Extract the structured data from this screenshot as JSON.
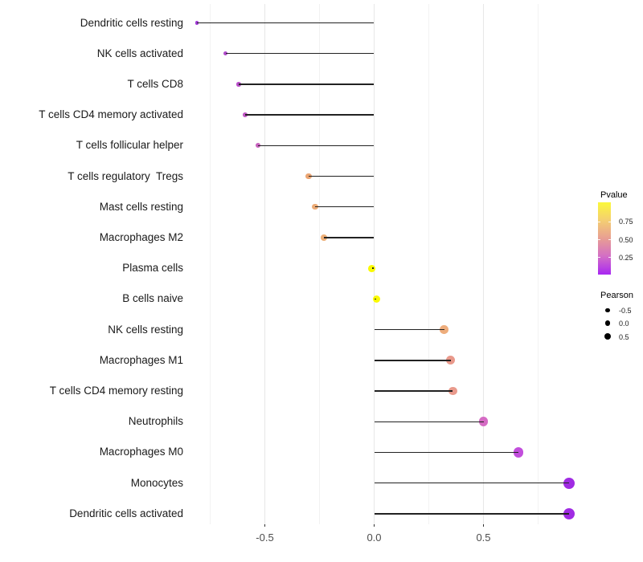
{
  "figure": {
    "background": "#ffffff",
    "description": "Lollipop chart of Pearson correlation for immune cell types; color encodes Pvalue, size encodes Pearson"
  },
  "chart_data": {
    "type": "lollipop",
    "title": "",
    "xlabel": "",
    "ylabel": "",
    "baseline_x": 0,
    "xlim": [
      -0.9,
      0.975
    ],
    "x_ticks": [
      "-0.5",
      "0.0",
      "0.5"
    ],
    "x_tick_values": [
      -0.5,
      0.0,
      0.5
    ],
    "x_minor_gridlines": [
      -0.75,
      -0.25,
      0.25,
      0.75
    ],
    "grid": "vertical major and minor gridlines only, light gray, no panel border",
    "categories": [
      "Dendritic cells resting",
      "NK cells activated",
      "T cells CD8",
      "T cells CD4 memory activated",
      "T cells follicular helper",
      "T cells regulatory  Tregs",
      "Mast cells resting",
      "Macrophages M2",
      "Plasma cells",
      "B cells naive",
      "NK cells resting",
      "Macrophages M1",
      "T cells CD4 memory resting",
      "Neutrophils",
      "Macrophages M0",
      "Monocytes",
      "Dendritic cells activated"
    ],
    "series": [
      {
        "name": "Pearson correlation",
        "values": [
          -0.81,
          -0.68,
          -0.62,
          -0.59,
          -0.53,
          -0.3,
          -0.27,
          -0.23,
          -0.01,
          0.01,
          0.32,
          0.35,
          0.36,
          0.5,
          0.66,
          0.89,
          0.89
        ]
      }
    ],
    "point_colors": [
      "#A43BD8",
      "#B04CCB",
      "#B84FC9",
      "#C058C4",
      "#C763BE",
      "#EBA573",
      "#ECAB76",
      "#EDAF78",
      "#FAFA00",
      "#FAFA00",
      "#EEAD7C",
      "#E9998B",
      "#E99A8C",
      "#D56BC4",
      "#C24EDC",
      "#A02BE3",
      "#A02BE3"
    ],
    "stick_color": "#222222",
    "legend_position": "right"
  },
  "legend_pvalue": {
    "title": "Pvalue",
    "tick_labels": [
      "0.75",
      "0.50",
      "0.25"
    ],
    "gradient_stops": [
      "#FBF83B",
      "#F4CE72",
      "#E89E93",
      "#D26DC6",
      "#A827F2"
    ]
  },
  "legend_pearson": {
    "title": "Pearson",
    "entries": [
      {
        "label": "-0.5",
        "value": -0.5
      },
      {
        "label": "0.0",
        "value": 0.0
      },
      {
        "label": "0.5",
        "value": 0.5
      }
    ],
    "dot_color": "#000000"
  }
}
